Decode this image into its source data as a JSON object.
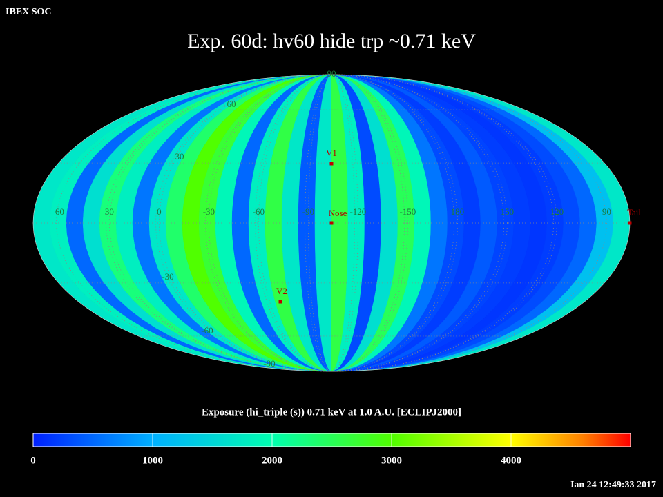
{
  "header": "IBEX SOC",
  "title": "Exp.   60d: hv60 hide trp ~0.71 keV",
  "map": {
    "longitude_labels": [
      60,
      30,
      0,
      -30,
      -60,
      -90,
      -120,
      -150,
      180,
      150,
      120,
      90
    ],
    "latitude_labels": [
      90,
      60,
      30,
      -30,
      -60,
      -90
    ],
    "strip_values": [
      1700,
      1800,
      500,
      1600,
      2300,
      1800,
      600,
      1700,
      2400,
      3000,
      2700,
      1900,
      500,
      1800,
      2600,
      1700,
      400,
      1700,
      2600,
      1800,
      300,
      1600,
      2500,
      1900,
      600,
      300,
      200,
      400,
      250,
      200,
      150,
      200,
      300,
      500,
      1200,
      1700
    ],
    "markers": [
      "V1",
      "Nose",
      "V2",
      "Tail"
    ]
  },
  "colorbar": {
    "label": "Exposure (hi_triple (s))  0.71 keV at 1.0 A.U. [ECLIPJ2000]",
    "range": [
      0,
      5000
    ],
    "ticks": [
      0,
      1000,
      2000,
      3000,
      4000
    ]
  },
  "timestamp": "Jan 24 12:49:33 2017"
}
